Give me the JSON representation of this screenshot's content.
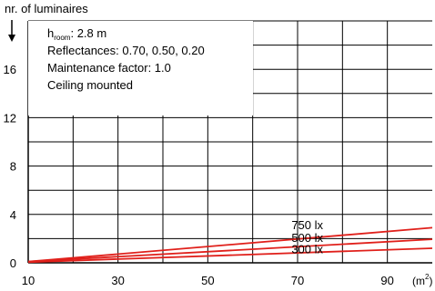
{
  "chart_data": {
    "type": "line",
    "ylabel": "nr. of luminaires",
    "xlabel": "(m",
    "xlabel_sup": "2",
    "xlabel_close": ")",
    "x_ticks": [
      "10",
      "30",
      "50",
      "70",
      "90"
    ],
    "y_ticks": [
      "0",
      "4",
      "8",
      "12",
      "16"
    ],
    "xlim": [
      10,
      100
    ],
    "ylim": [
      0,
      20
    ],
    "grid": true,
    "info_box": {
      "h_room_prefix": "h",
      "h_room_sub": "room",
      "h_room_value": ": 2.8 m",
      "reflectances": "Reflectances: 0.70, 0.50, 0.20",
      "maintenance": "Maintenance factor: 1.0",
      "mounting": "Ceiling mounted"
    },
    "series": [
      {
        "name": "750 lx",
        "x": [
          10,
          100
        ],
        "y": [
          0.1,
          2.9
        ],
        "color": "#e0201b"
      },
      {
        "name": "500 lx",
        "x": [
          10,
          100
        ],
        "y": [
          0.1,
          1.95
        ],
        "color": "#e0201b"
      },
      {
        "name": "300 lx",
        "x": [
          10,
          100
        ],
        "y": [
          0.05,
          1.2
        ],
        "color": "#e0201b"
      }
    ]
  }
}
